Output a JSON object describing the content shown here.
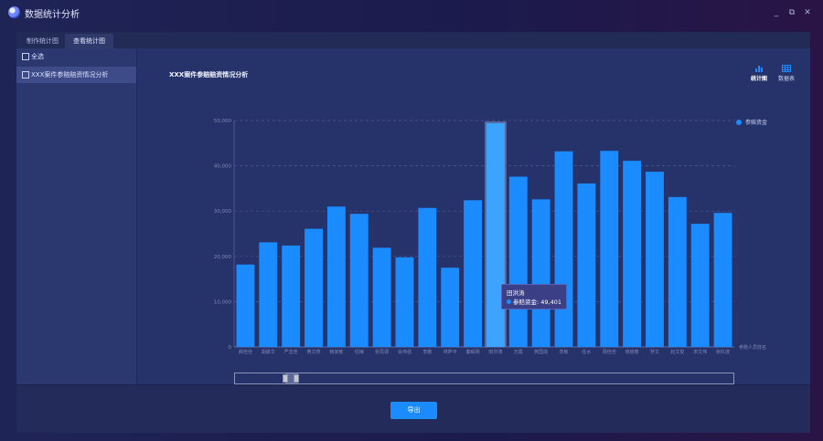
{
  "window": {
    "title": "数据统计分析",
    "controls": {
      "minimize": "_",
      "restore": "⧉",
      "close": "✕"
    }
  },
  "tabs": [
    {
      "label": "制作统计图",
      "active": false
    },
    {
      "label": "查看统计图",
      "active": true
    }
  ],
  "sidebar": {
    "items": [
      {
        "label": "全选",
        "selected": false
      },
      {
        "label": "XXX案件参赔赔资情况分析",
        "selected": true
      }
    ]
  },
  "toolbar": {
    "chart_label": "统计图",
    "table_label": "数据表"
  },
  "footer": {
    "export_label": "导出"
  },
  "colors": {
    "accent": "#1a8cff",
    "bar_highlight": "#3ca3ff"
  },
  "tooltip": {
    "title": "田洪涛",
    "series": "参赔资金",
    "value": "49,401"
  },
  "chart_data": {
    "type": "bar",
    "title": "XXX案件参赔赔资情况分析",
    "xlabel": "参赔人员姓名",
    "ylabel": "",
    "ylim": [
      0,
      50000
    ],
    "yticks": [
      "0",
      "10,000",
      "20,000",
      "30,000",
      "40,000",
      "50,000"
    ],
    "grid": true,
    "legend_position": "top-right",
    "categories": [
      "郝佳佳",
      "胡晨华",
      "严志佳",
      "黄文燕",
      "韩家敏",
      "任梅",
      "张思源",
      "会伟强",
      "李鹏",
      "林萨平",
      "秦毅刚",
      "田洪涛",
      "万霞",
      "蒋国勋",
      "李敏",
      "任水",
      "周佳佳",
      "晓晓春",
      "罗文",
      "赵文俊",
      "宋文伟",
      "张红波"
    ],
    "series": [
      {
        "name": "参赔资金",
        "values": [
          18200,
          23100,
          22400,
          26100,
          31000,
          29400,
          21900,
          19800,
          30700,
          17500,
          32400,
          49401,
          37600,
          32600,
          43200,
          36100,
          43300,
          41100,
          38700,
          33100,
          27200,
          29600
        ]
      }
    ],
    "highlight_index": 11
  }
}
